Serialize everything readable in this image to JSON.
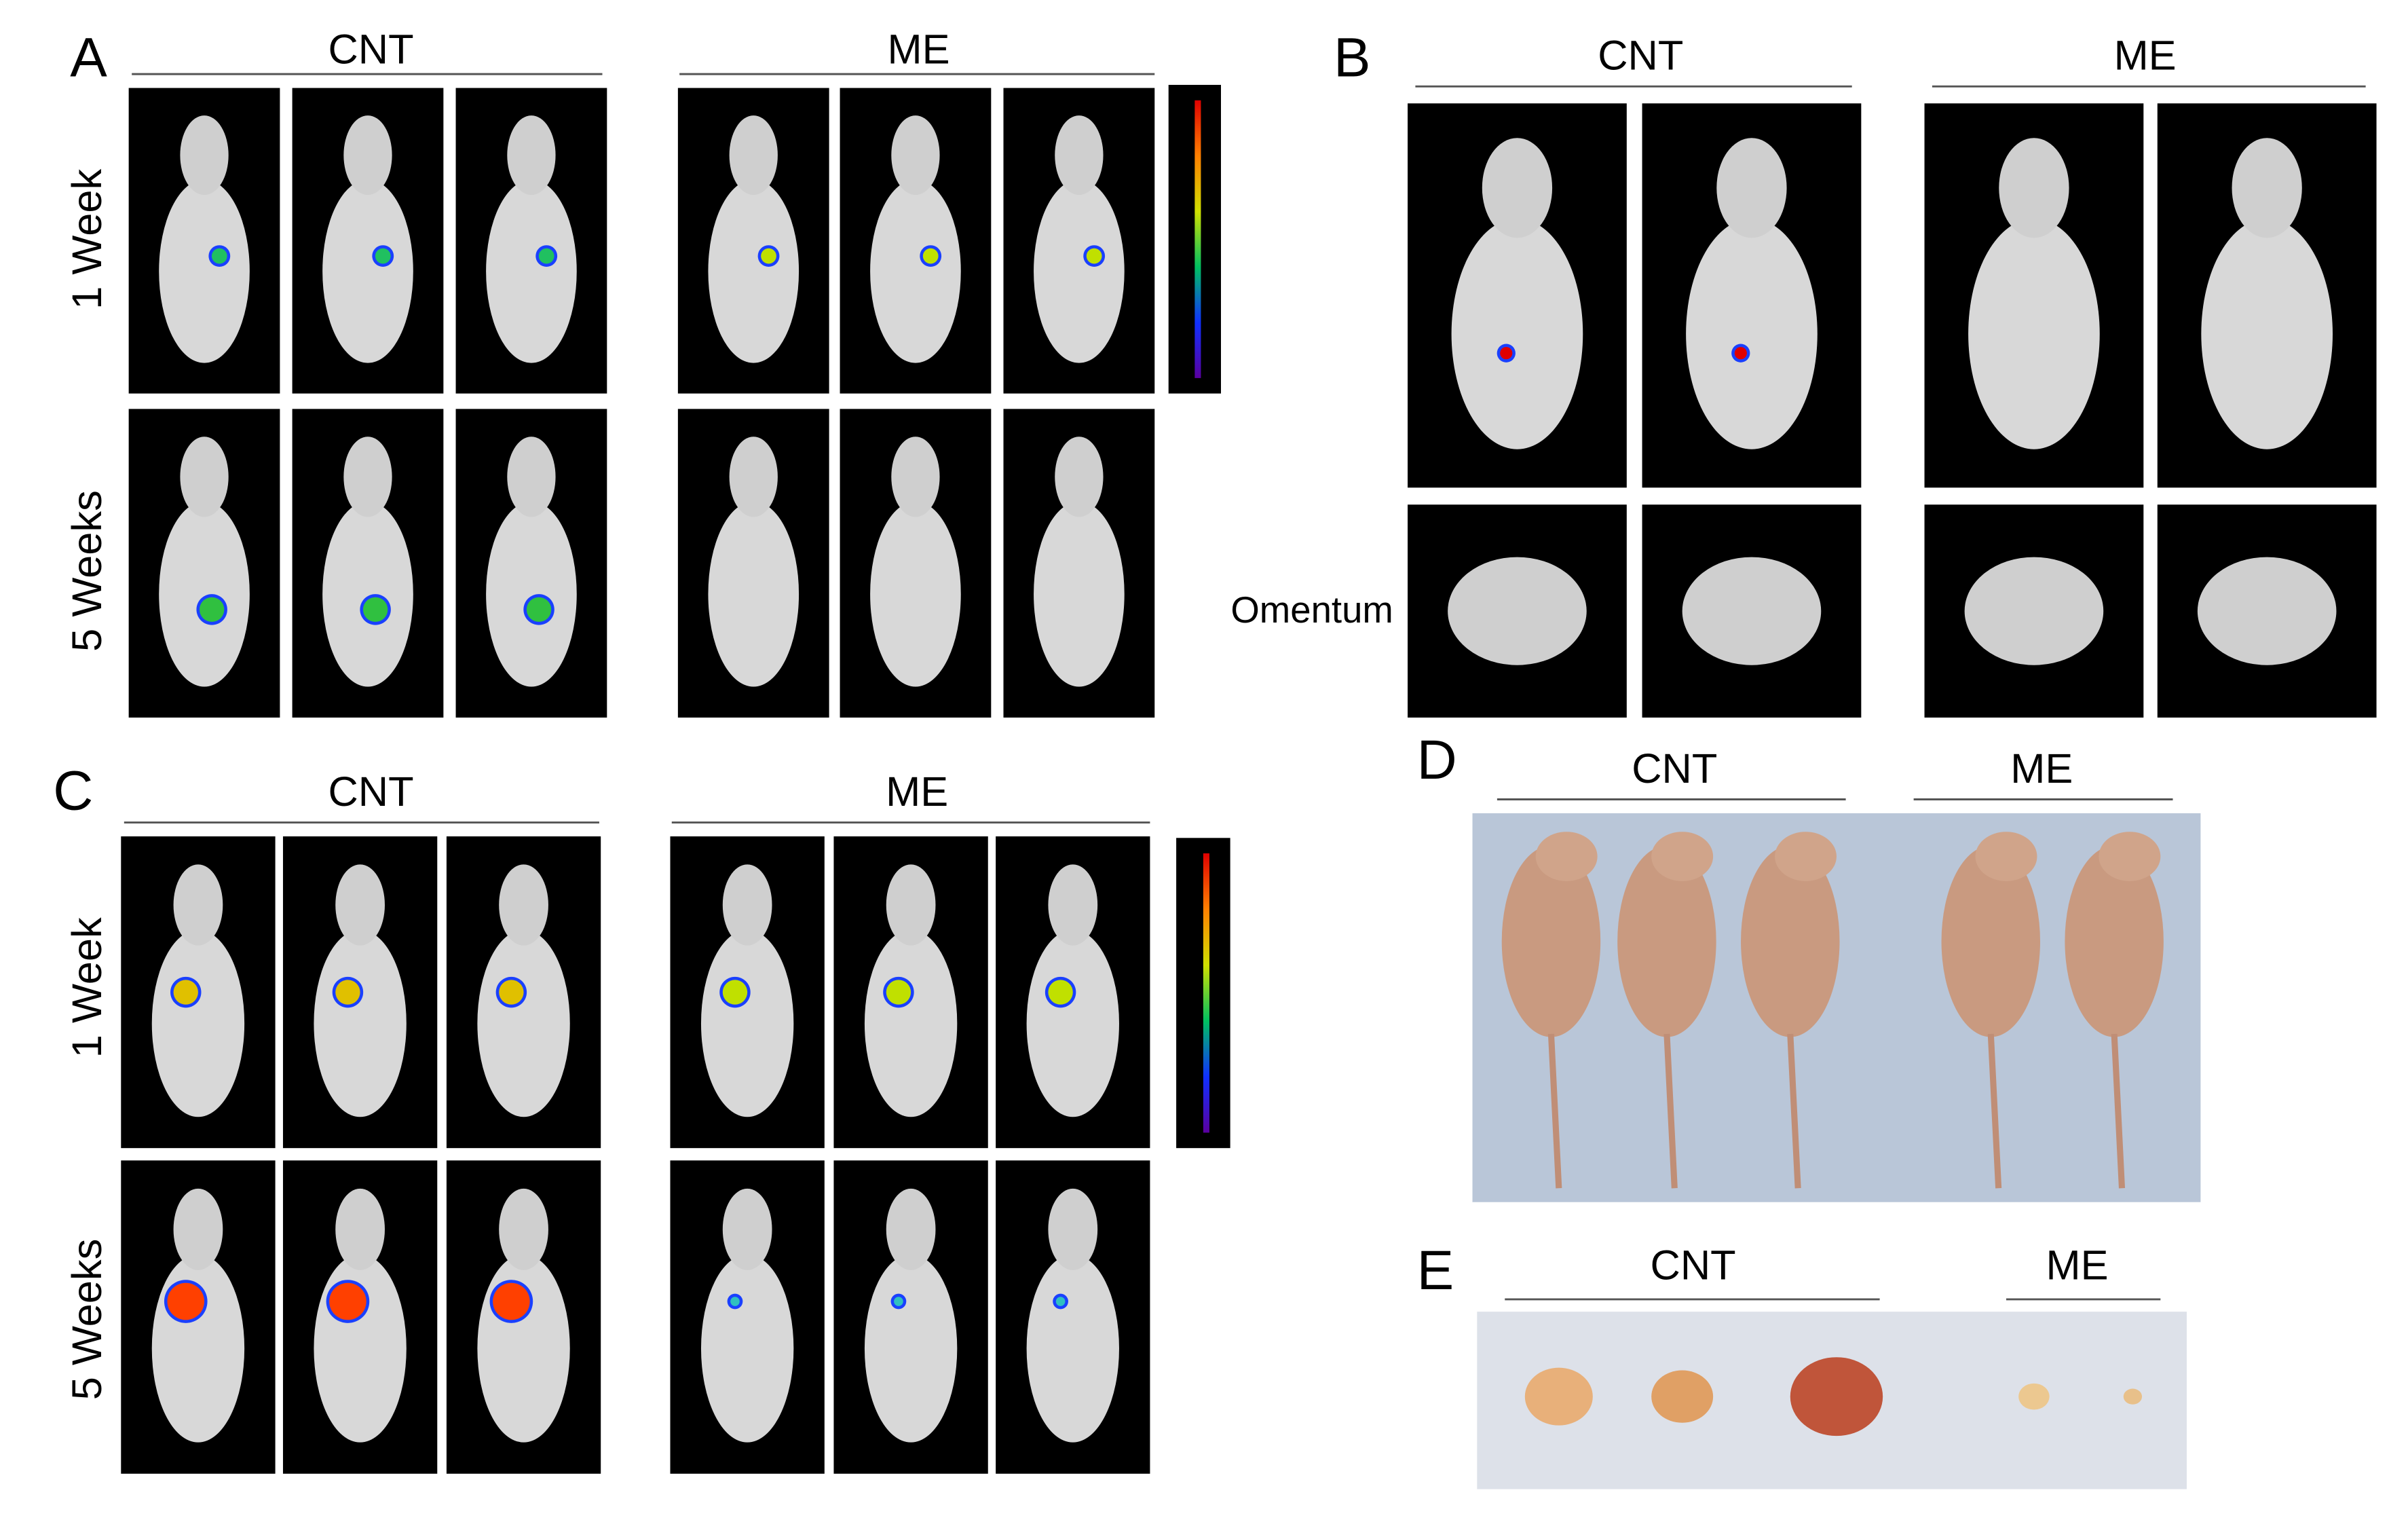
{
  "panels": [
    {
      "label": "A",
      "groups": [
        "CNT",
        "ME"
      ],
      "rows": [
        "1 Week",
        "5 Weeks"
      ]
    },
    {
      "label": "B",
      "groups": [
        "CNT",
        "ME"
      ],
      "rows": [
        "Omentum"
      ]
    },
    {
      "label": "C",
      "groups": [
        "CNT",
        "ME"
      ],
      "rows": [
        "1 Week",
        "5 Weeks"
      ]
    },
    {
      "label": "D",
      "groups": [
        "CNT",
        "ME"
      ]
    },
    {
      "label": "E",
      "groups": [
        "CNT",
        "ME"
      ]
    }
  ]
}
